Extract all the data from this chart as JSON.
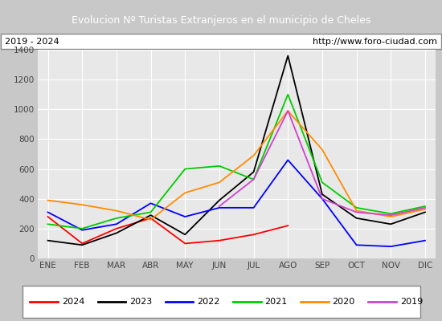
{
  "title": "Evolucion Nº Turistas Extranjeros en el municipio de Cheles",
  "subtitle_left": "2019 - 2024",
  "subtitle_right": "http://www.foro-ciudad.com",
  "title_bg_color": "#4a7cc7",
  "title_text_color": "#ffffff",
  "plot_bg_color": "#e8e8e8",
  "fig_bg_color": "#c8c8c8",
  "months": [
    "ENE",
    "FEB",
    "MAR",
    "ABR",
    "MAY",
    "JUN",
    "JUL",
    "AGO",
    "SEP",
    "OCT",
    "NOV",
    "DIC"
  ],
  "ylim": [
    0,
    1400
  ],
  "yticks": [
    0,
    200,
    400,
    600,
    800,
    1000,
    1200,
    1400
  ],
  "series": {
    "2024": {
      "color": "#ff0000",
      "data": [
        280,
        100,
        200,
        270,
        100,
        120,
        160,
        220,
        null,
        null,
        null,
        null
      ]
    },
    "2023": {
      "color": "#000000",
      "data": [
        120,
        90,
        170,
        290,
        160,
        390,
        580,
        1360,
        430,
        270,
        230,
        310
      ]
    },
    "2022": {
      "color": "#0000ff",
      "data": [
        310,
        190,
        230,
        370,
        280,
        340,
        340,
        660,
        400,
        90,
        80,
        120
      ]
    },
    "2021": {
      "color": "#00cc00",
      "data": [
        230,
        200,
        270,
        310,
        600,
        620,
        530,
        1100,
        510,
        340,
        300,
        350
      ]
    },
    "2020": {
      "color": "#ff8c00",
      "data": [
        390,
        360,
        320,
        260,
        440,
        510,
        690,
        990,
        730,
        320,
        280,
        330
      ]
    },
    "2019": {
      "color": "#cc44cc",
      "data": [
        null,
        null,
        null,
        null,
        null,
        350,
        530,
        990,
        400,
        310,
        290,
        340
      ]
    }
  },
  "legend_order": [
    "2024",
    "2023",
    "2022",
    "2021",
    "2020",
    "2019"
  ],
  "grid_color": "#ffffff",
  "tick_label_color": "#444444"
}
